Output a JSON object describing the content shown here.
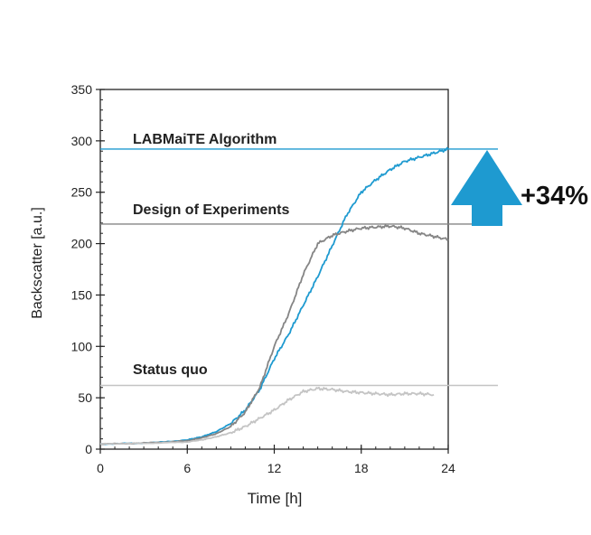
{
  "chart_data": {
    "type": "line",
    "xlabel": "Time [h]",
    "ylabel": "Backscatter [a.u.]",
    "xlim": [
      0,
      24
    ],
    "ylim": [
      0,
      350
    ],
    "xticks": [
      0,
      6,
      12,
      18,
      24
    ],
    "yticks": [
      0,
      50,
      100,
      150,
      200,
      250,
      300,
      350
    ],
    "grid": false,
    "series": [
      {
        "color": "#1e9ad0",
        "x": [
          0,
          2,
          4,
          6,
          7,
          8,
          9,
          10,
          11,
          12,
          13,
          14,
          15,
          16,
          17,
          18,
          19,
          20,
          21,
          22,
          23,
          24
        ],
        "y": [
          5,
          5.5,
          6.5,
          9,
          12,
          17,
          25,
          38,
          58,
          88,
          112,
          140,
          168,
          198,
          228,
          250,
          262,
          272,
          280,
          284,
          288,
          292
        ]
      },
      {
        "color": "#858585",
        "x": [
          0,
          2,
          4,
          6,
          7,
          8,
          9,
          10,
          11,
          12,
          13,
          14,
          15,
          16,
          17,
          18,
          19,
          20,
          21,
          22,
          23,
          24
        ],
        "y": [
          5,
          5.5,
          6.5,
          8,
          11,
          15,
          22,
          36,
          60,
          100,
          132,
          170,
          200,
          208,
          212,
          215,
          216,
          217,
          215,
          210,
          207,
          204
        ]
      },
      {
        "color": "#c4c4c4",
        "x": [
          0,
          2,
          4,
          6,
          7,
          8,
          9,
          10,
          11,
          12,
          13,
          14,
          15,
          16,
          17,
          18,
          19,
          20,
          21,
          22,
          23
        ],
        "y": [
          5,
          5.5,
          6,
          7,
          9,
          12,
          16,
          22,
          30,
          38,
          48,
          56,
          59,
          58,
          56,
          55,
          54,
          53,
          54,
          54,
          53
        ]
      }
    ],
    "annotations": {
      "labmaite": {
        "label": "LABMaiTE Algorithm",
        "y": 292,
        "color": "#1e9ad0"
      },
      "doe": {
        "label": "Design of Experiments",
        "y": 219,
        "color": "#858585"
      },
      "status": {
        "label": "Status quo",
        "y": 62,
        "color": "#c4c4c4"
      },
      "improvement": {
        "label": "+34%",
        "color": "#1e9ad0"
      }
    }
  }
}
